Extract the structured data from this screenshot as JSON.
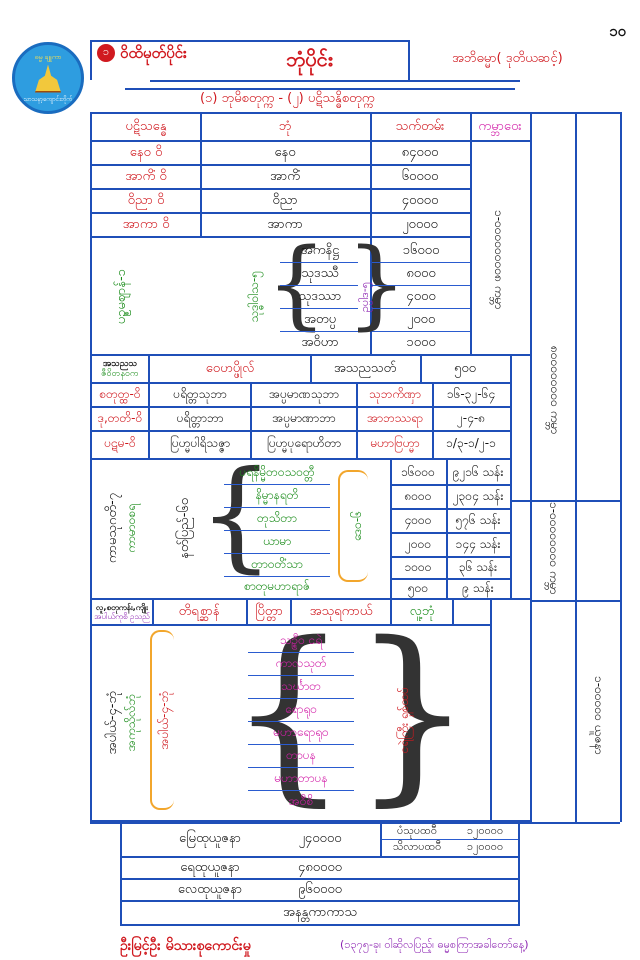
{
  "page_number": "၁၀",
  "header": {
    "section_label": "ဝိထိမုတ်ပိုင်း",
    "title": "ဘုံပိုင်း",
    "author_note": "အဘိဓမ္မာ( ဒုတိယဆင့်)",
    "subtitle": "(၁) ဘုမိစတုက္က  -  (၂) ပဋိသန္ဓိစတုက္က",
    "logo_top": "ဓမ္မ ချူကာ",
    "logo_bottom": "သာသနာ့ကျောင်းတိုက်"
  },
  "columns": {
    "patisandhi": "ပဋိသန္ဓေ",
    "bhumi": "ဘုံ",
    "lifespan": "သက်တမ်း",
    "kappa": "ကမ္ဘာဝေး"
  },
  "arupa_rows": [
    {
      "p": "နေဝ  ၀ိ",
      "bhumi": "နေဝ",
      "life": "၈၄၀၀၀"
    },
    {
      "p": "အာကိံ  ၀ိ",
      "bhumi": "အာကိံ",
      "life": "၆၀၀၀၀"
    },
    {
      "p": "ဝိညာ  ၀ိ",
      "bhumi": "ဝိညာ",
      "life": "၄၀၀၀၀"
    },
    {
      "p": "အာကာ  ၀ိ",
      "bhumi": "အာကာ",
      "life": "၂၀၀၀၀"
    }
  ],
  "suddhavasa": {
    "left_label": "ပဥ္စမဈာန်-၁",
    "mid_label": "သုဒ္ဓါဝါသ-၅",
    "right_label": "ဥပ္ပါဒ-၅",
    "items": [
      "အကနိဋ္ဌ",
      "သုဒဿီ",
      "သုဒဿာ",
      "အတပ္ပ",
      "အဝိဟာ"
    ],
    "life": [
      "၁၆၀၀၀",
      "၈၀၀၀",
      "၄၀၀၀",
      "၂၀၀၀",
      "၁၀၀၀"
    ]
  },
  "asanna_row": {
    "label_top": "အသညသ",
    "label_bottom": "ဇီဝိတနဝက",
    "vehapphala": "ဝေဟပ္ဖိုလ်",
    "asannasatta": "အသညသတ်",
    "life": "၅၀၀"
  },
  "rupa_rows": [
    {
      "label": "စတုတ္ထ-၀ိ",
      "c1": "ပရိတ္တသုဘာ",
      "c2": "အပ္ပမာဏသုဘာ",
      "c3": "သုဘကိဏှာ",
      "life": "၁၆-၃၂-၆၄"
    },
    {
      "label": "ဒု,တတိ-၀ိ",
      "c1": "ပရိတ္တာဘာ",
      "c2": "အပ္ပမာဏာဘာ",
      "c3": "အာဘဿရာ",
      "life": "၂-၄-၈"
    },
    {
      "label": "ပဋမ-၀ိ",
      "c1": "ပြဟ္မပါရိသဇ္ဇာ",
      "c2": "ပြဟ္မပုရောဟိတာ",
      "c3": "မဟာဗြဟ္မာ",
      "life": "၁/၃-၁/၂-၁"
    }
  ],
  "kama_sugati": {
    "left_label": "ကာမသုဂတိ-၇",
    "left_sub": "ကာမာဝစရ",
    "mid_label": "နတ်ပြည်-၆ဝ",
    "right_label": "ဒေဝ-၆",
    "items": [
      "ပရနိမ္မိတဝသဝတ္တီ",
      "နိမ္မာနရတိ",
      "တုသိတာ",
      "ယာမာ",
      "တာဝတိံသာ",
      "စာတုမဟာရာဇ်"
    ],
    "life": [
      "၁၆၀၀၀",
      "၈၀၀၀",
      "၄၀၀၀",
      "၂၀၀၀",
      "၁၀၀၀",
      "၅၀၀"
    ],
    "years": [
      "၉၂၁၆ သန်း",
      "၂၃၀၄ သန်း",
      "၅၇၆ သန်း",
      "၁၄၄ သန်း",
      "၃၆ သန်း",
      "၉ သန်း"
    ]
  },
  "human_row": {
    "left_top": "လူ,စတုကန်း,ကျိုး",
    "left_bottom": "အပါယ်ကုစိ ဥသည်",
    "c1": "တိရစ္ဆာန်",
    "c2": "ပြိတ္တာ",
    "c3": "အသုရကာယ်",
    "c4": "လူ့ဘုံ"
  },
  "apaya": {
    "left_label": "အပါယ်-၄-ဘုံ",
    "left_sub": "အကုသိုလ်ဘုံ",
    "mid_label": "အပါယ်-၄-ဘုံ",
    "hell_label": "ငရဲကြီး ရှစ်ထပ်",
    "items": [
      "သဉ္စီဝ ငရဲ",
      "ကာလသုတ်",
      "သင်္ဃာတ",
      "ရောရုဝ",
      "မဟာရောရုဝ",
      "တာပန",
      "မဟာတာပန",
      "အဝီစိ"
    ]
  },
  "side_labels": {
    "k1": "၁-၀၀၀၀၀၀၀၀၈",
    "k2": "၈၀၀၀၀၀၀၀၀",
    "k3": "၁-၀၀၀၀၀၀၀၀",
    "k4": "၁-၀၀၀၀၀",
    "tail1": "ကမ္ဘာ",
    "tail2": "ယူဇနာ"
  },
  "bottom": {
    "rows": [
      {
        "label": "မြေထုယူဇနာ",
        "value": "၂၄၀၀၀၀"
      },
      {
        "label": "ရေထုယူဇနာ",
        "value": "၄၈၀၀၀၀"
      },
      {
        "label": "လေထုယူဇနာ",
        "value": "၉၆၀၀၀၀"
      }
    ],
    "last": "အနန္တကာကာသ",
    "right1_label": "ပံသုပထဝီ",
    "right1_value": "၁၂၀၀၀၀",
    "right2_label": "သိလာပထဝီ",
    "right2_value": "၁၂၀၀၀၀"
  },
  "footer": {
    "publisher": "ဦးမြင့်ဦး မိသားစုကောင်းမှု",
    "note": "(၁၃၇၅-ခု၊ ဝါဆိုလပြည့်၊ ဓမ္မစကြာအခါတော်နေ့)"
  }
}
